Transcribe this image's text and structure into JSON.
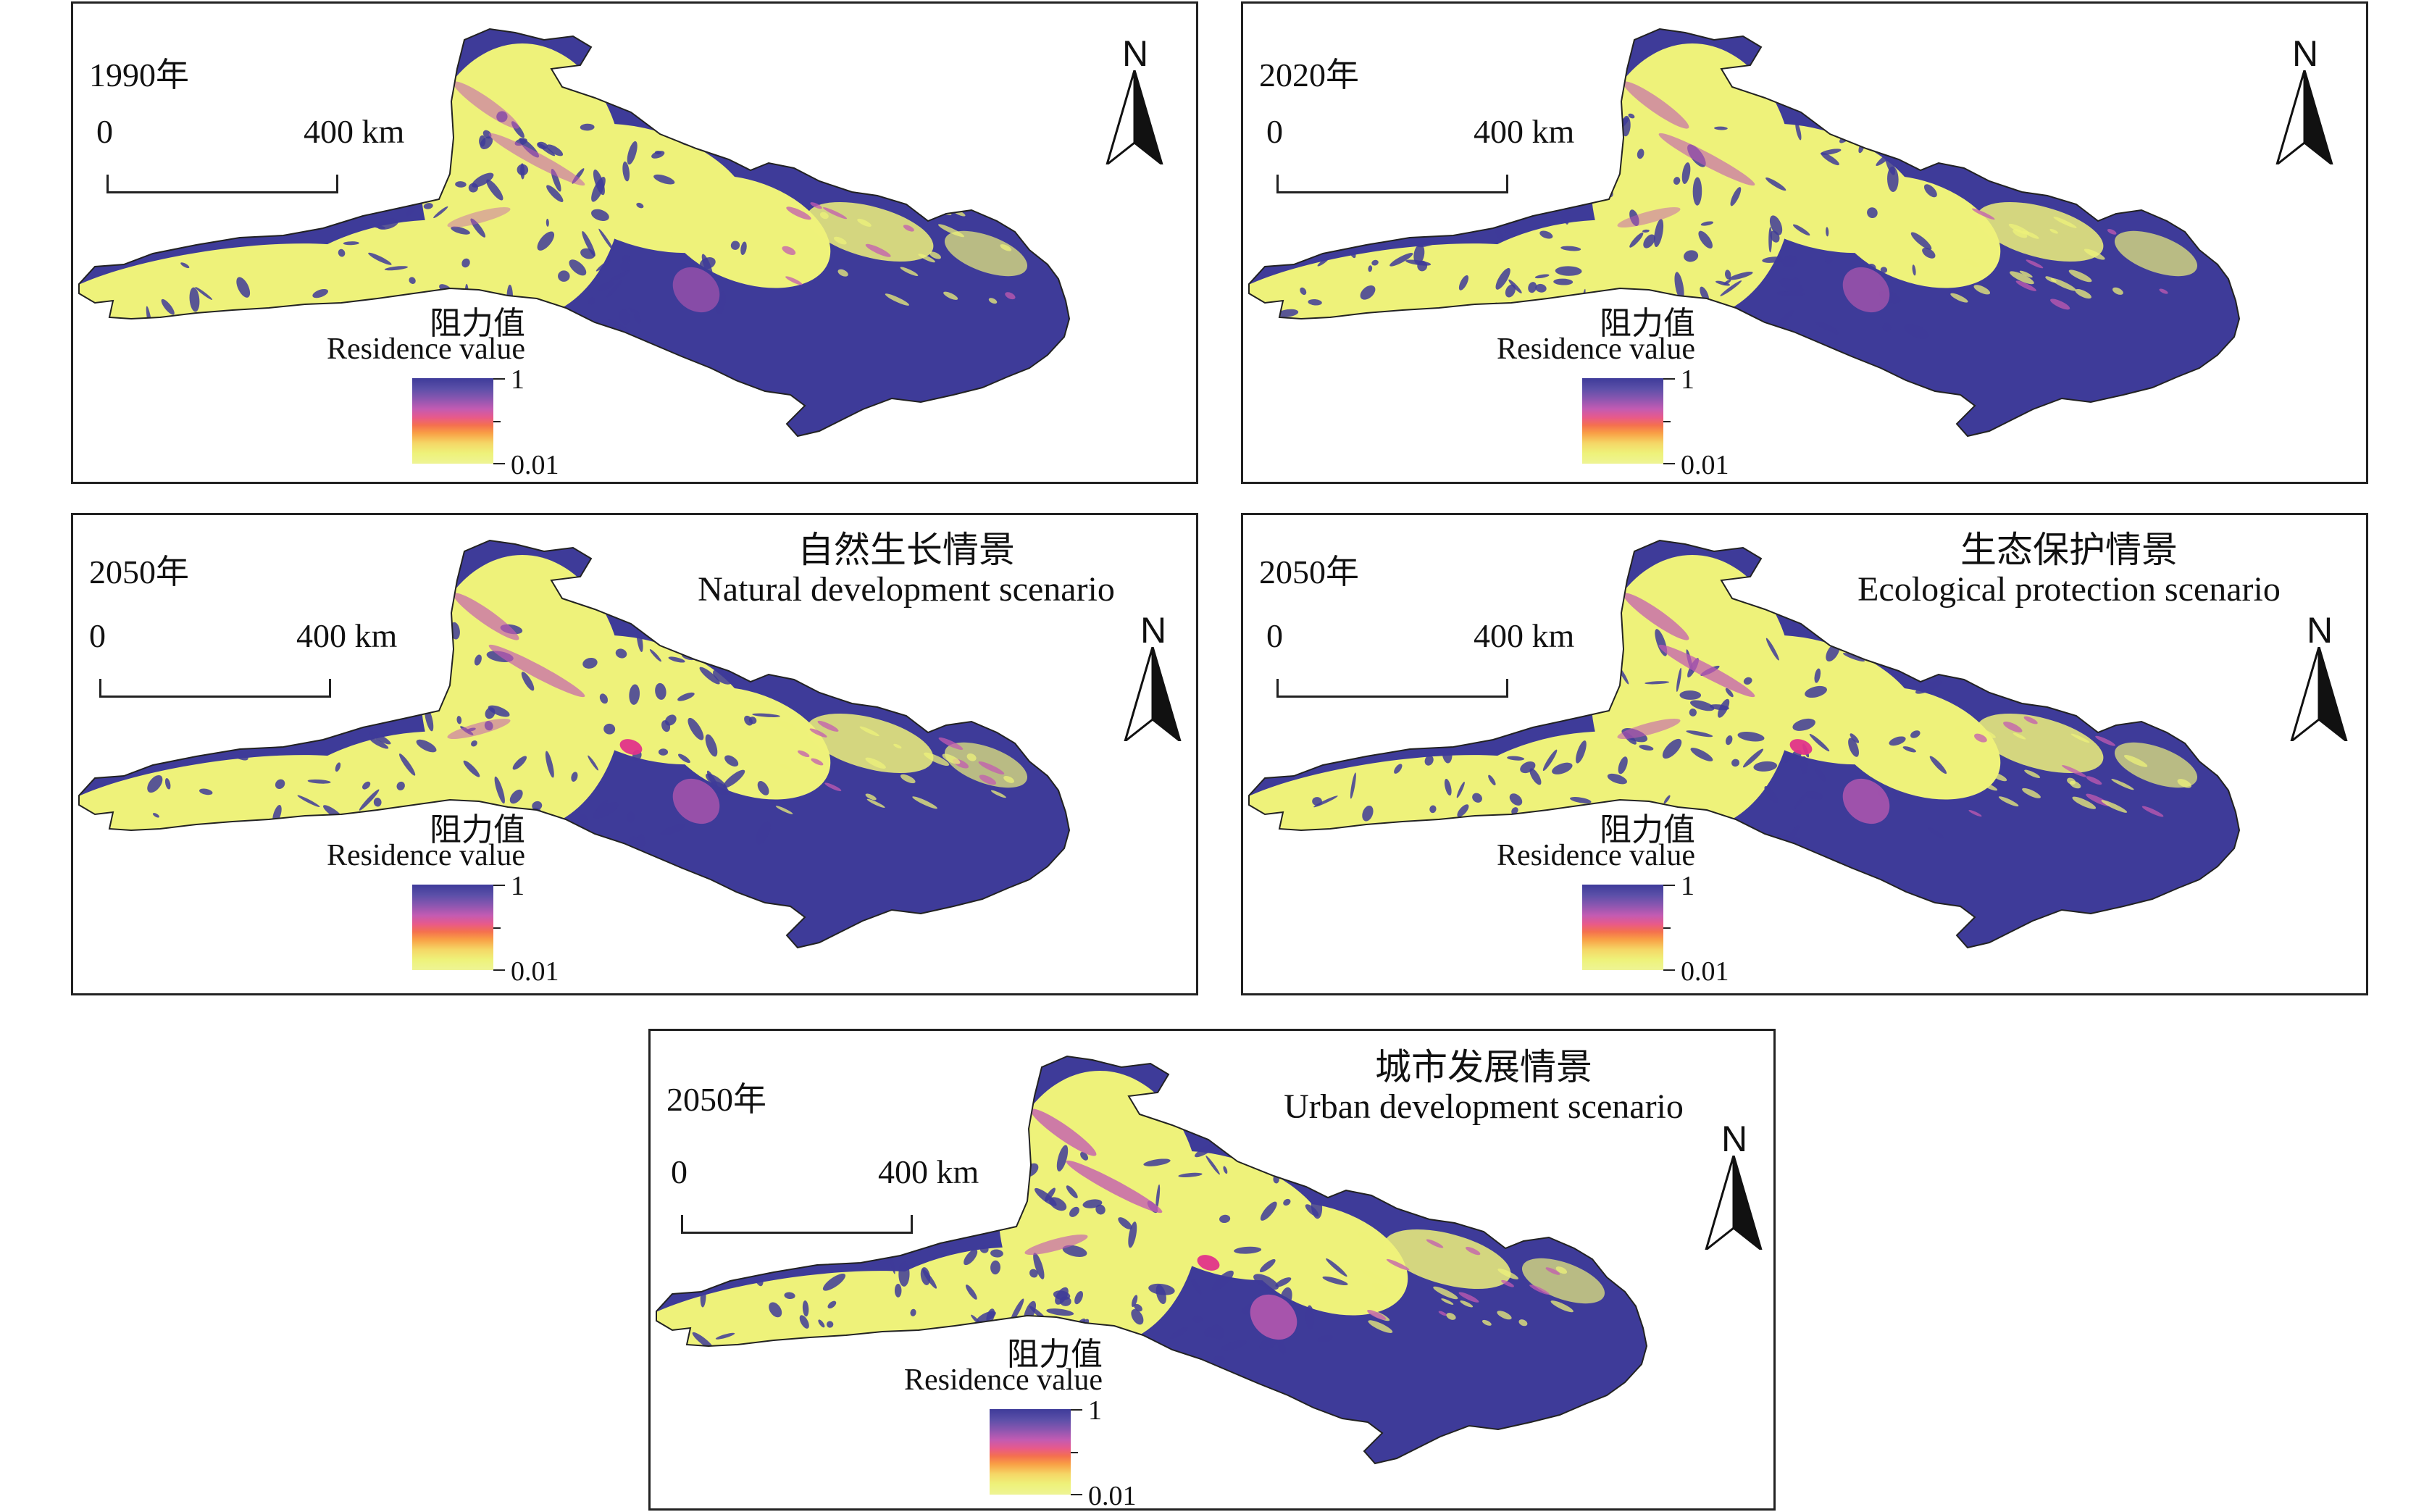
{
  "panels": [
    {
      "year": "1990年",
      "title_zh": "",
      "title_en": "",
      "variant": 0
    },
    {
      "year": "2020年",
      "title_zh": "",
      "title_en": "",
      "variant": 1
    },
    {
      "year": "2050年",
      "title_zh": "自然生长情景",
      "title_en": "Natural development scenario",
      "variant": 2
    },
    {
      "year": "2050年",
      "title_zh": "生态保护情景",
      "title_en": "Ecological protection scenario",
      "variant": 3
    },
    {
      "year": "2050年",
      "title_zh": "城市发展情景",
      "title_en": "Urban development scenario",
      "variant": 4
    }
  ],
  "scale_bar": {
    "start": "0",
    "end": "400 km"
  },
  "north_arrow": {
    "letter": "N",
    "icon": "north-arrow-icon"
  },
  "legend": {
    "title_zh": "阻力值",
    "title_en": "Residence value",
    "max": "1",
    "min": "0.01"
  },
  "colors": {
    "high_resistance": "#3e3b99",
    "mid_resistance": "#c35bb2",
    "hot_spot": "#e0338a",
    "low_resistance": "#eef27a",
    "outline": "#222222"
  }
}
